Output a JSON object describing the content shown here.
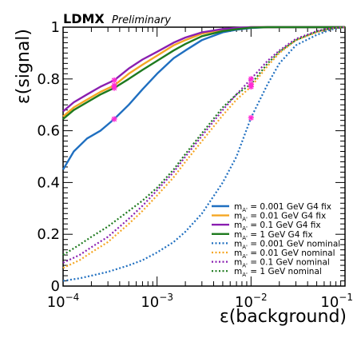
{
  "chart_data": {
    "type": "line",
    "experiment": "LDMX",
    "status": "Preliminary",
    "xlabel": "ε(background)",
    "ylabel": "ε(signal)",
    "xscale": "log",
    "xlim": [
      0.0001,
      0.1
    ],
    "ylim": [
      0,
      1
    ],
    "x_ticks": [
      0.0001,
      0.001,
      0.01,
      0.1
    ],
    "x_tick_labels": [
      {
        "base": "10",
        "exp": "−4"
      },
      {
        "base": "10",
        "exp": "−3"
      },
      {
        "base": "10",
        "exp": "−2"
      },
      {
        "base": "10",
        "exp": "−1"
      }
    ],
    "y_ticks": [
      0,
      0.2,
      0.4,
      0.6,
      0.8,
      1
    ],
    "y_tick_labels": [
      "0",
      "0.2",
      "0.4",
      "0.6",
      "0.8",
      "1"
    ],
    "legend_position": "bottom-right",
    "series": [
      {
        "name": "m_A' = 0.001 GeV G4 fix",
        "label_parts": [
          "m",
          "A'",
          " = 0.001 GeV G4 fix"
        ],
        "color": "#1f6fc0",
        "style": "solid",
        "x": [
          0.0001,
          0.00013,
          0.00018,
          0.00025,
          0.00035,
          0.0005,
          0.0007,
          0.001,
          0.0015,
          0.002,
          0.003,
          0.005,
          0.007,
          0.01,
          0.015,
          0.02,
          0.05,
          0.1
        ],
        "y": [
          0.45,
          0.52,
          0.57,
          0.6,
          0.645,
          0.7,
          0.76,
          0.82,
          0.88,
          0.91,
          0.95,
          0.98,
          0.99,
          0.997,
          1.0,
          1.0,
          1.0,
          1.0
        ]
      },
      {
        "name": "m_A' = 0.01 GeV G4 fix",
        "label_parts": [
          "m",
          "A'",
          " = 0.01 GeV G4 fix"
        ],
        "color": "#f5a623",
        "style": "solid",
        "x": [
          0.0001,
          0.00013,
          0.00018,
          0.00025,
          0.00035,
          0.0005,
          0.0007,
          0.001,
          0.0015,
          0.002,
          0.003,
          0.005,
          0.007,
          0.01,
          0.015,
          0.02,
          0.05,
          0.1
        ],
        "y": [
          0.655,
          0.69,
          0.72,
          0.75,
          0.775,
          0.82,
          0.855,
          0.89,
          0.93,
          0.95,
          0.975,
          0.99,
          0.995,
          1.0,
          1.0,
          1.0,
          1.0,
          1.0
        ]
      },
      {
        "name": "m_A' = 0.1 GeV G4 fix",
        "label_parts": [
          "m",
          "A'",
          " = 0.1 GeV G4 fix"
        ],
        "color": "#8a1fb0",
        "style": "solid",
        "x": [
          0.0001,
          0.00013,
          0.00018,
          0.00025,
          0.00035,
          0.0005,
          0.0007,
          0.001,
          0.0015,
          0.002,
          0.003,
          0.005,
          0.007,
          0.01,
          0.015,
          0.02,
          0.05,
          0.1
        ],
        "y": [
          0.675,
          0.71,
          0.74,
          0.77,
          0.795,
          0.84,
          0.875,
          0.905,
          0.94,
          0.96,
          0.98,
          0.993,
          0.997,
          1.0,
          1.0,
          1.0,
          1.0,
          1.0
        ]
      },
      {
        "name": "m_A' = 1 GeV G4 fix",
        "label_parts": [
          "m",
          "A'",
          " = 1 GeV G4 fix"
        ],
        "color": "#1e7a1e",
        "style": "solid",
        "x": [
          0.0001,
          0.00013,
          0.00018,
          0.00025,
          0.00035,
          0.0005,
          0.0007,
          0.001,
          0.0015,
          0.002,
          0.003,
          0.005,
          0.007,
          0.01,
          0.015,
          0.02,
          0.05,
          0.1
        ],
        "y": [
          0.645,
          0.68,
          0.71,
          0.74,
          0.765,
          0.8,
          0.835,
          0.87,
          0.91,
          0.935,
          0.965,
          0.985,
          0.992,
          0.998,
          1.0,
          1.0,
          1.0,
          1.0
        ]
      },
      {
        "name": "m_A' = 0.001 GeV nominal",
        "label_parts": [
          "m",
          "A'",
          " = 0.001 GeV nominal"
        ],
        "color": "#1f6fc0",
        "style": "dotted",
        "x": [
          0.0001,
          0.00015,
          0.0002,
          0.0003,
          0.0005,
          0.0007,
          0.001,
          0.0015,
          0.002,
          0.003,
          0.005,
          0.007,
          0.01,
          0.015,
          0.02,
          0.03,
          0.05,
          0.07,
          0.1
        ],
        "y": [
          0.02,
          0.03,
          0.04,
          0.055,
          0.08,
          0.1,
          0.13,
          0.17,
          0.21,
          0.28,
          0.4,
          0.5,
          0.65,
          0.78,
          0.86,
          0.93,
          0.97,
          0.99,
          1.0
        ]
      },
      {
        "name": "m_A' = 0.01 GeV nominal",
        "label_parts": [
          "m",
          "A'",
          " = 0.01 GeV nominal"
        ],
        "color": "#f5a623",
        "style": "dotted",
        "x": [
          0.0001,
          0.00015,
          0.0002,
          0.0003,
          0.0005,
          0.0007,
          0.001,
          0.0015,
          0.002,
          0.003,
          0.005,
          0.007,
          0.01,
          0.015,
          0.02,
          0.03,
          0.05,
          0.07,
          0.1
        ],
        "y": [
          0.07,
          0.1,
          0.13,
          0.17,
          0.24,
          0.29,
          0.35,
          0.42,
          0.48,
          0.56,
          0.66,
          0.72,
          0.77,
          0.85,
          0.9,
          0.95,
          0.98,
          0.995,
          1.0
        ]
      },
      {
        "name": "m_A' = 0.1 GeV nominal",
        "label_parts": [
          "m",
          "A'",
          " = 0.1 GeV nominal"
        ],
        "color": "#8a1fb0",
        "style": "dotted",
        "x": [
          0.0001,
          0.00015,
          0.0002,
          0.0003,
          0.0005,
          0.0007,
          0.001,
          0.0015,
          0.002,
          0.003,
          0.005,
          0.007,
          0.01,
          0.015,
          0.02,
          0.03,
          0.05,
          0.07,
          0.1
        ],
        "y": [
          0.09,
          0.12,
          0.15,
          0.19,
          0.26,
          0.31,
          0.37,
          0.44,
          0.5,
          0.58,
          0.68,
          0.74,
          0.8,
          0.87,
          0.91,
          0.955,
          0.985,
          0.996,
          1.0
        ]
      },
      {
        "name": "m_A' = 1 GeV nominal",
        "label_parts": [
          "m",
          "A'",
          " = 1 GeV nominal"
        ],
        "color": "#1e7a1e",
        "style": "dotted",
        "x": [
          0.0001,
          0.00015,
          0.0002,
          0.0003,
          0.0005,
          0.0007,
          0.001,
          0.0015,
          0.002,
          0.003,
          0.005,
          0.007,
          0.01,
          0.015,
          0.02,
          0.03,
          0.05,
          0.07,
          0.1
        ],
        "y": [
          0.12,
          0.16,
          0.19,
          0.23,
          0.29,
          0.33,
          0.38,
          0.45,
          0.51,
          0.59,
          0.69,
          0.74,
          0.78,
          0.86,
          0.905,
          0.95,
          0.983,
          0.995,
          1.0
        ]
      }
    ],
    "markers": {
      "color": "#ff2bd6",
      "symbol": "star",
      "points": [
        {
          "x": 0.00035,
          "y": 0.645
        },
        {
          "x": 0.00035,
          "y": 0.765
        },
        {
          "x": 0.00035,
          "y": 0.775
        },
        {
          "x": 0.00035,
          "y": 0.795
        },
        {
          "x": 0.01,
          "y": 0.65
        },
        {
          "x": 0.01,
          "y": 0.77
        },
        {
          "x": 0.01,
          "y": 0.78
        },
        {
          "x": 0.01,
          "y": 0.8
        }
      ]
    }
  }
}
